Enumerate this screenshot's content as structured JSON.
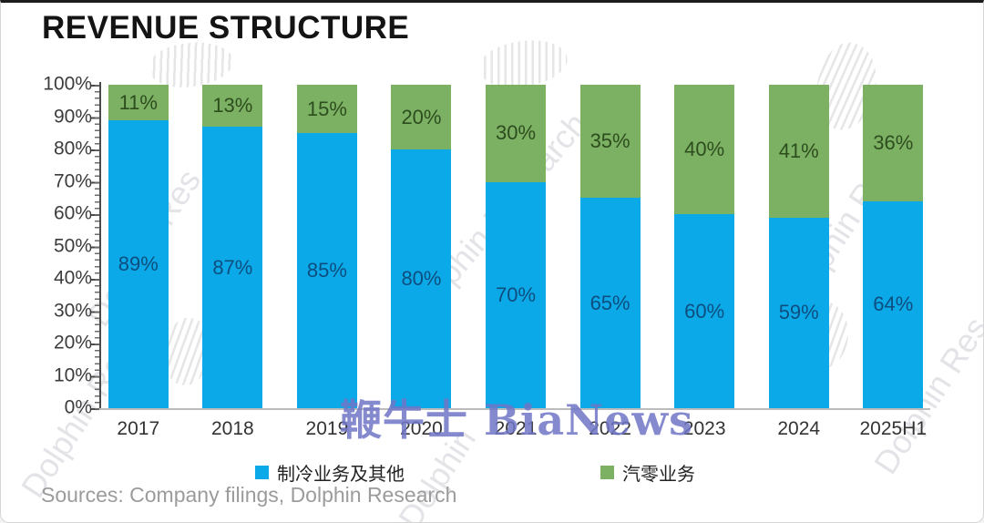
{
  "header": {
    "title": "REVENUE STRUCTURE"
  },
  "footer": {
    "source_note": "Sources: Company filings, Dolphin Research"
  },
  "watermarks": {
    "center": "鞭牛士 BiaNews",
    "diagonal_full": "Dolphin Research",
    "diagonal_partial": "Dolphin Res",
    "diagonal_short": "Dolphin"
  },
  "legend": {
    "items": [
      {
        "label": "制冷业务及其他",
        "color": "#0CA9E9"
      },
      {
        "label": "汽零业务",
        "color": "#7CB164"
      }
    ]
  },
  "chart_data": {
    "type": "bar",
    "stacked": true,
    "title": "REVENUE STRUCTURE",
    "categories": [
      "2017",
      "2018",
      "2019",
      "2020",
      "2021",
      "2022",
      "2023",
      "2024",
      "2025H1"
    ],
    "series": [
      {
        "name": "制冷业务及其他",
        "color": "#0CA9E9",
        "label_color": "#0D4E7F",
        "values": [
          89,
          87,
          85,
          80,
          70,
          65,
          60,
          59,
          64
        ]
      },
      {
        "name": "汽零业务",
        "color": "#7CB164",
        "label_color": "#2D4D1E",
        "values": [
          11,
          13,
          15,
          20,
          30,
          35,
          40,
          41,
          36
        ]
      }
    ],
    "value_suffix": "%",
    "xlabel": "",
    "ylabel": "",
    "ylim": [
      0,
      100
    ],
    "yticks": [
      "100%",
      "90%",
      "80%",
      "70%",
      "60%",
      "50%",
      "40%",
      "30%",
      "20%",
      "10%",
      "0%"
    ],
    "grid": false,
    "legend_position": "bottom"
  }
}
